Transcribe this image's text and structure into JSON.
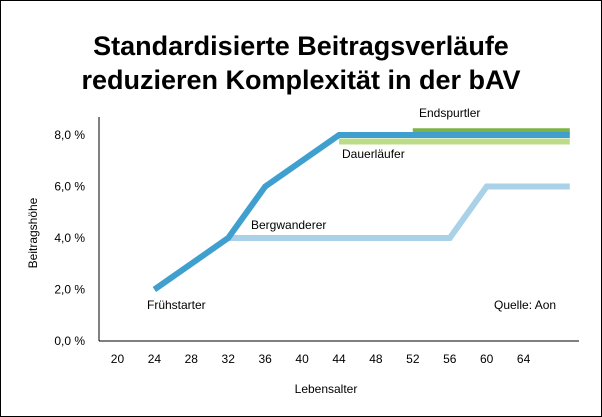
{
  "chart_data": {
    "type": "line",
    "title_lines": [
      "Standardisierte Beitragsverläufe",
      "reduzieren Komplexität in der bAV"
    ],
    "xlabel": "Lebensalter",
    "ylabel": "Beitragshöhe",
    "x_ticks": [
      "20",
      "24",
      "28",
      "32",
      "36",
      "40",
      "44",
      "48",
      "52",
      "56",
      "60",
      "64"
    ],
    "y_ticks": [
      "0,0 %",
      "2,0 %",
      "4,0 %",
      "6,0 %",
      "8,0 %"
    ],
    "xlim": [
      18,
      70
    ],
    "ylim": [
      0,
      8.7
    ],
    "grid": false,
    "source": "Quelle: Aon",
    "series": [
      {
        "name": "Frühstarter",
        "color": "#3fa0d0",
        "points": [
          [
            24,
            2.0
          ],
          [
            32,
            4.0
          ],
          [
            36,
            6.0
          ],
          [
            44,
            8.0
          ],
          [
            69,
            8.0
          ]
        ]
      },
      {
        "name": "Bergwanderer",
        "color": "#a9d2e8",
        "points": [
          [
            32,
            4.0
          ],
          [
            56,
            4.0
          ],
          [
            60,
            6.0
          ],
          [
            69,
            6.0
          ]
        ]
      },
      {
        "name": "Dauerläufer",
        "color": "#bcdc8a",
        "points": [
          [
            44,
            7.75
          ],
          [
            69,
            7.75
          ]
        ]
      },
      {
        "name": "Endspurtler",
        "color": "#7cb342",
        "points": [
          [
            52,
            8.15
          ],
          [
            69,
            8.15
          ]
        ]
      }
    ]
  }
}
